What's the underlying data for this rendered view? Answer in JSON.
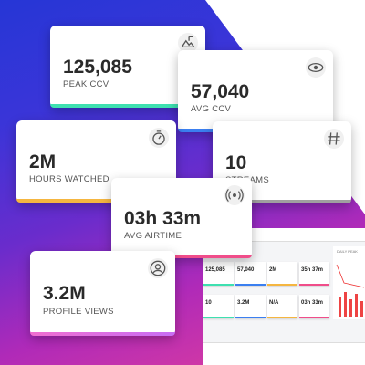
{
  "cards": [
    {
      "value": "125,085",
      "label": "PEAK CCV"
    },
    {
      "value": "57,040",
      "label": "AVG CCV"
    },
    {
      "value": "2M",
      "label": "HOURS WATCHED"
    },
    {
      "value": "10",
      "label": "STREAMS"
    },
    {
      "value": "03h 33m",
      "label": "AVG AIRTIME"
    },
    {
      "value": "3.2M",
      "label": "PROFILE VIEWS"
    }
  ],
  "dashboard": {
    "values": [
      "125,085",
      "57,040",
      "2M",
      "35h 37m",
      "10",
      "3.2M",
      "N/A",
      "03h 33m"
    ]
  }
}
